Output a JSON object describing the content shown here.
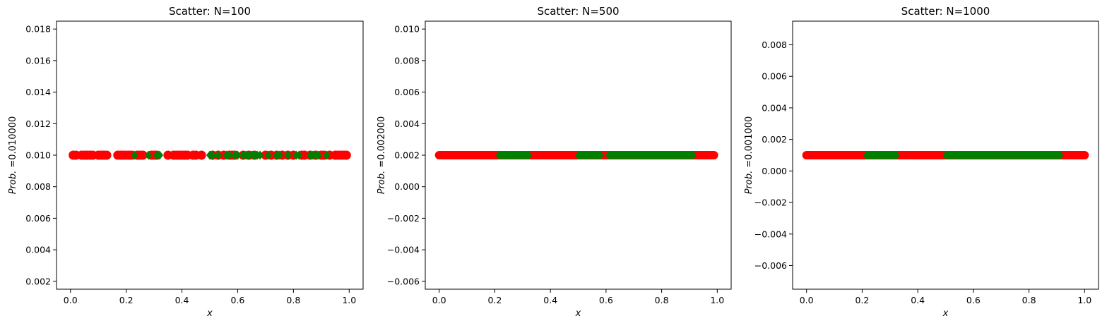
{
  "chart_data": [
    {
      "type": "scatter",
      "title": "Scatter: N=100",
      "xlabel": "x",
      "ylabel": {
        "italic": "Prob.",
        "rest": " =0.010000"
      },
      "xlim": [
        -0.05,
        1.05
      ],
      "ylim": [
        0.0015,
        0.0185
      ],
      "xticks": [
        0.0,
        0.2,
        0.4,
        0.6,
        0.8,
        1.0
      ],
      "xtick_labels": [
        "0.0",
        "0.2",
        "0.4",
        "0.6",
        "0.8",
        "1.0"
      ],
      "yticks": [
        0.002,
        0.004,
        0.006,
        0.008,
        0.01,
        0.012,
        0.014,
        0.016,
        0.018
      ],
      "ytick_labels": [
        "0.002",
        "0.004",
        "0.006",
        "0.008",
        "0.010",
        "0.012",
        "0.014",
        "0.016",
        "0.018"
      ],
      "grid": false,
      "marker_radius_style": "large",
      "series": [
        {
          "color": "#ff0000",
          "marker": "circle",
          "y": 0.01,
          "x": [
            0.01,
            0.02,
            0.04,
            0.05,
            0.06,
            0.07,
            0.08,
            0.1,
            0.11,
            0.12,
            0.13,
            0.17,
            0.18,
            0.19,
            0.2,
            0.21,
            0.22,
            0.24,
            0.25,
            0.26,
            0.29,
            0.3,
            0.31,
            0.35,
            0.37,
            0.38,
            0.39,
            0.4,
            0.41,
            0.42,
            0.44,
            0.45,
            0.47,
            0.51,
            0.53,
            0.55,
            0.57,
            0.58,
            0.59,
            0.62,
            0.64,
            0.66,
            0.7,
            0.72,
            0.74,
            0.76,
            0.78,
            0.8,
            0.83,
            0.84,
            0.86,
            0.88,
            0.9,
            0.91,
            0.93,
            0.95,
            0.96,
            0.97,
            0.98,
            0.99
          ]
        },
        {
          "color": "#008000",
          "marker": "diamond",
          "y": 0.01,
          "x": [
            0.23,
            0.28,
            0.31,
            0.32,
            0.5,
            0.51,
            0.53,
            0.56,
            0.57,
            0.59,
            0.6,
            0.62,
            0.63,
            0.64,
            0.65,
            0.66,
            0.67,
            0.68,
            0.71,
            0.74,
            0.75,
            0.78,
            0.81,
            0.82,
            0.86,
            0.87,
            0.88,
            0.89,
            0.92
          ]
        }
      ]
    },
    {
      "type": "scatter",
      "title": "Scatter: N=500",
      "xlabel": "x",
      "ylabel": {
        "italic": "Prob.",
        "rest": " =0.002000"
      },
      "xlim": [
        -0.05,
        1.05
      ],
      "ylim": [
        -0.0065,
        0.0105
      ],
      "xticks": [
        0.0,
        0.2,
        0.4,
        0.6,
        0.8,
        1.0
      ],
      "xtick_labels": [
        "0.0",
        "0.2",
        "0.4",
        "0.6",
        "0.8",
        "1.0"
      ],
      "yticks": [
        -0.006,
        -0.004,
        -0.002,
        0.0,
        0.002,
        0.004,
        0.006,
        0.008,
        0.01
      ],
      "ytick_labels": [
        "−0.006",
        "−0.004",
        "−0.002",
        "0.000",
        "0.002",
        "0.004",
        "0.006",
        "0.008",
        "0.010"
      ],
      "grid": false,
      "marker_radius_style": "medium",
      "series": [
        {
          "color": "#ff0000",
          "marker": "circle",
          "y": 0.002,
          "dense_range": [
            0.0,
            0.99
          ],
          "step": 0.004
        },
        {
          "color": "#008000",
          "marker": "diamond",
          "y": 0.002,
          "dense_ranges": [
            [
              0.215,
              0.325
            ],
            [
              0.5,
              0.58
            ],
            [
              0.61,
              0.915
            ]
          ],
          "step": 0.004
        }
      ]
    },
    {
      "type": "scatter",
      "title": "Scatter: N=1000",
      "xlabel": "x",
      "ylabel": {
        "italic": "Prob.",
        "rest": " =0.001000"
      },
      "xlim": [
        -0.05,
        1.05
      ],
      "ylim": [
        -0.0075,
        0.0095
      ],
      "xticks": [
        0.0,
        0.2,
        0.4,
        0.6,
        0.8,
        1.0
      ],
      "xtick_labels": [
        "0.0",
        "0.2",
        "0.4",
        "0.6",
        "0.8",
        "1.0"
      ],
      "yticks": [
        -0.006,
        -0.004,
        -0.002,
        0.0,
        0.002,
        0.004,
        0.006,
        0.008
      ],
      "ytick_labels": [
        "−0.006",
        "−0.004",
        "−0.002",
        "0.000",
        "0.002",
        "0.004",
        "0.006",
        "0.008"
      ],
      "grid": false,
      "marker_radius_style": "medium",
      "series": [
        {
          "color": "#ff0000",
          "marker": "circle",
          "y": 0.001,
          "dense_range": [
            0.0,
            1.0
          ],
          "step": 0.004
        },
        {
          "color": "#008000",
          "marker": "diamond",
          "y": 0.001,
          "dense_ranges": [
            [
              0.215,
              0.325
            ],
            [
              0.5,
              0.915
            ]
          ],
          "step": 0.004
        }
      ]
    }
  ]
}
